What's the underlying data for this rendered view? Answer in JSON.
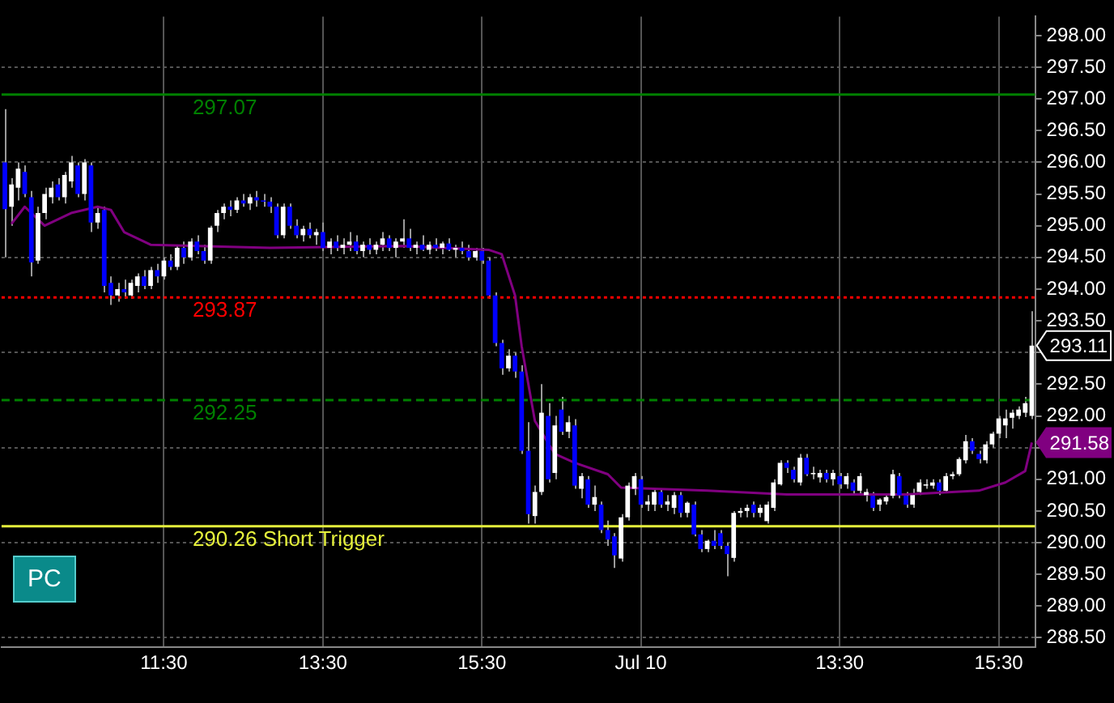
{
  "chart_data": {
    "type": "candlestick",
    "categories": [
      null,
      null,
      null,
      null,
      null,
      null,
      null,
      null,
      null,
      null,
      null,
      null,
      null,
      null,
      null,
      null,
      null,
      null,
      null,
      null,
      null,
      null,
      null,
      null,
      "11:30",
      null,
      null,
      null,
      null,
      null,
      null,
      null,
      null,
      null,
      null,
      null,
      null,
      null,
      null,
      null,
      null,
      null,
      null,
      null,
      null,
      null,
      null,
      null,
      "13:30",
      null,
      null,
      null,
      null,
      null,
      null,
      null,
      null,
      null,
      null,
      null,
      null,
      null,
      null,
      null,
      null,
      null,
      null,
      null,
      null,
      null,
      null,
      null,
      "15:30",
      null,
      null,
      null,
      null,
      null,
      null,
      null,
      null,
      null,
      null,
      null,
      null,
      null,
      null,
      null,
      null,
      null,
      null,
      null,
      null,
      null,
      null,
      null,
      "Jul 10",
      null,
      null,
      null,
      null,
      null,
      null,
      null,
      null,
      null,
      null,
      null,
      null,
      null,
      null,
      null,
      null,
      null,
      null,
      null,
      null,
      null,
      null,
      null,
      null,
      null,
      null,
      null,
      null,
      null,
      "13:30",
      null,
      null,
      null,
      null,
      null,
      null,
      null,
      null,
      null,
      null,
      null,
      null,
      null,
      null,
      null,
      null,
      null,
      null,
      null,
      null,
      null,
      null,
      null,
      "15:30",
      null,
      null,
      null,
      null,
      null
    ],
    "ohlc": [
      [
        296.0,
        296.84,
        294.5,
        295.26
      ],
      [
        295.3,
        295.75,
        295.0,
        295.65
      ],
      [
        295.6,
        296.0,
        295.4,
        295.9
      ],
      [
        295.85,
        295.95,
        295.45,
        295.5
      ],
      [
        295.45,
        295.55,
        294.2,
        294.42
      ],
      [
        294.45,
        295.3,
        294.4,
        295.2
      ],
      [
        295.2,
        295.6,
        295.1,
        295.5
      ],
      [
        295.45,
        295.7,
        295.35,
        295.6
      ],
      [
        295.65,
        295.75,
        295.4,
        295.45
      ],
      [
        295.45,
        295.85,
        295.35,
        295.8
      ],
      [
        295.7,
        296.1,
        295.6,
        296.0
      ],
      [
        295.95,
        296.0,
        295.45,
        295.5
      ],
      [
        295.5,
        296.05,
        295.4,
        296.0
      ],
      [
        295.95,
        296.0,
        294.9,
        295.05
      ],
      [
        295.05,
        295.3,
        294.95,
        295.2
      ],
      [
        295.25,
        295.3,
        293.95,
        294.05
      ],
      [
        294.1,
        294.2,
        293.75,
        293.9
      ],
      [
        293.9,
        294.1,
        293.8,
        294.0
      ],
      [
        294.0,
        294.15,
        293.85,
        293.95
      ],
      [
        293.9,
        294.15,
        293.85,
        294.1
      ],
      [
        294.05,
        294.25,
        293.95,
        294.2
      ],
      [
        294.2,
        294.3,
        294.0,
        294.05
      ],
      [
        294.05,
        294.35,
        294.0,
        294.3
      ],
      [
        294.3,
        294.4,
        294.1,
        294.2
      ],
      [
        294.2,
        294.5,
        294.15,
        294.45
      ],
      [
        294.45,
        294.55,
        294.3,
        294.35
      ],
      [
        294.35,
        294.7,
        294.3,
        294.65
      ],
      [
        294.65,
        294.75,
        294.4,
        294.5
      ],
      [
        294.5,
        294.8,
        294.45,
        294.75
      ],
      [
        294.75,
        294.85,
        294.55,
        294.6
      ],
      [
        294.6,
        294.7,
        294.4,
        294.45
      ],
      [
        294.45,
        295.0,
        294.4,
        294.97
      ],
      [
        295.0,
        295.25,
        294.9,
        295.2
      ],
      [
        295.2,
        295.35,
        295.1,
        295.3
      ],
      [
        295.3,
        295.4,
        295.15,
        295.25
      ],
      [
        295.25,
        295.45,
        295.2,
        295.4
      ],
      [
        295.4,
        295.5,
        295.3,
        295.35
      ],
      [
        295.35,
        295.5,
        295.25,
        295.45
      ],
      [
        295.45,
        295.55,
        295.3,
        295.4
      ],
      [
        295.4,
        295.5,
        295.3,
        295.38
      ],
      [
        295.38,
        295.45,
        295.2,
        295.3
      ],
      [
        295.3,
        295.35,
        294.8,
        294.85
      ],
      [
        294.85,
        295.35,
        294.8,
        295.3
      ],
      [
        295.3,
        295.35,
        294.95,
        295.0
      ],
      [
        295.0,
        295.1,
        294.8,
        294.85
      ],
      [
        294.85,
        295.0,
        294.75,
        294.95
      ],
      [
        294.95,
        295.05,
        294.8,
        294.85
      ],
      [
        294.85,
        294.95,
        294.7,
        294.9
      ],
      [
        294.9,
        295.05,
        294.6,
        294.65
      ],
      [
        294.65,
        294.8,
        294.55,
        294.75
      ],
      [
        294.75,
        294.85,
        294.6,
        294.65
      ],
      [
        294.65,
        294.8,
        294.55,
        294.7
      ],
      [
        294.7,
        294.9,
        294.6,
        294.75
      ],
      [
        294.75,
        294.85,
        294.55,
        294.6
      ],
      [
        294.6,
        294.75,
        294.5,
        294.7
      ],
      [
        294.7,
        294.8,
        294.55,
        294.62
      ],
      [
        294.62,
        294.75,
        294.55,
        294.7
      ],
      [
        294.7,
        294.9,
        294.6,
        294.8
      ],
      [
        294.8,
        294.85,
        294.6,
        294.65
      ],
      [
        294.65,
        294.8,
        294.5,
        294.75
      ],
      [
        294.75,
        295.1,
        294.65,
        294.8
      ],
      [
        294.8,
        294.95,
        294.6,
        294.65
      ],
      [
        294.65,
        294.75,
        294.55,
        294.7
      ],
      [
        294.7,
        294.85,
        294.6,
        294.62
      ],
      [
        294.62,
        294.75,
        294.55,
        294.7
      ],
      [
        294.7,
        294.8,
        294.6,
        294.65
      ],
      [
        294.65,
        294.75,
        294.55,
        294.72
      ],
      [
        294.72,
        294.8,
        294.6,
        294.62
      ],
      [
        294.62,
        294.7,
        294.5,
        294.65
      ],
      [
        294.65,
        294.75,
        294.55,
        294.6
      ],
      [
        294.6,
        294.7,
        294.45,
        294.5
      ],
      [
        294.5,
        294.65,
        294.45,
        294.6
      ],
      [
        294.6,
        294.65,
        294.4,
        294.45
      ],
      [
        294.45,
        294.5,
        293.85,
        293.9
      ],
      [
        293.9,
        293.95,
        293.1,
        293.15
      ],
      [
        293.15,
        293.2,
        292.65,
        292.75
      ],
      [
        292.75,
        293.05,
        292.7,
        292.95
      ],
      [
        292.95,
        293.0,
        292.6,
        292.7
      ],
      [
        292.7,
        292.8,
        291.4,
        291.45
      ],
      [
        291.45,
        291.9,
        290.3,
        290.45
      ],
      [
        290.42,
        290.9,
        290.3,
        290.8
      ],
      [
        290.8,
        292.5,
        290.75,
        292.05
      ],
      [
        292.0,
        292.2,
        290.95,
        291.0
      ],
      [
        291.1,
        292.0,
        291.0,
        291.85
      ],
      [
        292.1,
        292.3,
        291.7,
        291.75
      ],
      [
        291.75,
        292.0,
        291.65,
        291.9
      ],
      [
        291.85,
        291.95,
        290.85,
        290.9
      ],
      [
        290.85,
        291.1,
        290.7,
        291.05
      ],
      [
        291.0,
        291.05,
        290.55,
        290.6
      ],
      [
        290.6,
        290.9,
        290.5,
        290.72
      ],
      [
        290.6,
        290.65,
        290.15,
        290.2
      ],
      [
        290.2,
        290.35,
        289.95,
        290.05
      ],
      [
        290.1,
        290.15,
        289.6,
        289.8
      ],
      [
        289.75,
        290.45,
        289.7,
        290.4
      ],
      [
        290.4,
        290.95,
        290.35,
        290.9
      ],
      [
        290.85,
        291.1,
        290.75,
        291.05
      ],
      [
        291.0,
        291.05,
        290.55,
        290.6
      ],
      [
        290.6,
        290.75,
        290.5,
        290.65
      ],
      [
        290.6,
        290.85,
        290.5,
        290.8
      ],
      [
        290.8,
        290.85,
        290.55,
        290.6
      ],
      [
        290.6,
        290.75,
        290.5,
        290.65
      ],
      [
        290.55,
        290.8,
        290.45,
        290.75
      ],
      [
        290.75,
        290.8,
        290.4,
        290.47
      ],
      [
        290.47,
        290.65,
        290.4,
        290.63
      ],
      [
        290.6,
        290.65,
        290.1,
        290.13
      ],
      [
        290.13,
        290.2,
        289.85,
        289.9
      ],
      [
        289.9,
        290.05,
        289.85,
        290.03
      ],
      [
        290.03,
        290.2,
        289.9,
        289.95
      ],
      [
        290.15,
        290.2,
        289.9,
        289.95
      ],
      [
        289.95,
        290.0,
        289.47,
        289.82
      ],
      [
        289.76,
        290.5,
        289.7,
        290.47
      ],
      [
        290.47,
        290.55,
        290.4,
        290.5
      ],
      [
        290.5,
        290.6,
        290.4,
        290.55
      ],
      [
        290.6,
        290.65,
        290.4,
        290.47
      ],
      [
        290.47,
        290.6,
        290.4,
        290.55
      ],
      [
        290.34,
        290.65,
        290.3,
        290.6
      ],
      [
        290.55,
        291.0,
        290.5,
        290.95
      ],
      [
        290.92,
        291.3,
        290.9,
        291.26
      ],
      [
        291.26,
        291.3,
        291.1,
        291.18
      ],
      [
        291.15,
        291.2,
        290.95,
        291.0
      ],
      [
        290.95,
        291.4,
        290.9,
        291.34
      ],
      [
        291.34,
        291.4,
        291.05,
        291.08
      ],
      [
        291.08,
        291.2,
        291.0,
        291.1
      ],
      [
        291.03,
        291.15,
        290.95,
        291.1
      ],
      [
        291.1,
        291.15,
        290.95,
        291.0
      ],
      [
        291.0,
        291.15,
        290.9,
        291.1
      ],
      [
        291.05,
        291.1,
        290.85,
        290.92
      ],
      [
        290.92,
        291.1,
        290.85,
        291.05
      ],
      [
        290.95,
        291.0,
        290.75,
        290.82
      ],
      [
        290.82,
        291.1,
        290.75,
        291.05
      ],
      [
        290.75,
        290.85,
        290.65,
        290.8
      ],
      [
        290.74,
        290.8,
        290.5,
        290.55
      ],
      [
        290.6,
        290.7,
        290.5,
        290.68
      ],
      [
        290.65,
        290.75,
        290.6,
        290.72
      ],
      [
        290.74,
        291.15,
        290.7,
        291.08
      ],
      [
        291.05,
        291.1,
        290.7,
        290.75
      ],
      [
        290.74,
        290.8,
        290.55,
        290.6
      ],
      [
        290.6,
        290.85,
        290.55,
        290.75
      ],
      [
        290.8,
        291.0,
        290.75,
        290.95
      ],
      [
        290.9,
        291.0,
        290.85,
        290.92
      ],
      [
        290.9,
        291.0,
        290.85,
        290.95
      ],
      [
        290.95,
        291.0,
        290.75,
        290.82
      ],
      [
        290.82,
        291.1,
        290.8,
        291.05
      ],
      [
        291.05,
        291.12,
        291.0,
        291.08
      ],
      [
        291.08,
        291.35,
        291.05,
        291.32
      ],
      [
        291.3,
        291.7,
        291.25,
        291.6
      ],
      [
        291.6,
        291.65,
        291.4,
        291.45
      ],
      [
        291.4,
        291.45,
        291.25,
        291.32
      ],
      [
        291.3,
        291.6,
        291.25,
        291.55
      ],
      [
        291.55,
        291.75,
        291.5,
        291.72
      ],
      [
        291.72,
        292.0,
        291.65,
        291.96
      ],
      [
        291.85,
        292.1,
        291.65,
        291.96
      ],
      [
        291.97,
        292.1,
        291.8,
        292.05
      ],
      [
        292.0,
        292.15,
        291.95,
        292.1
      ],
      [
        292.05,
        292.3,
        291.98,
        292.2
      ],
      [
        292.0,
        293.65,
        291.95,
        293.11
      ]
    ],
    "series": [
      {
        "type": "line",
        "color": "#800080",
        "values": [
          null,
          295.03,
          null,
          295.3,
          null,
          null,
          295.0,
          null,
          null,
          null,
          295.2,
          null,
          null,
          null,
          295.3,
          null,
          295.25,
          null,
          294.9,
          null,
          null,
          null,
          294.7,
          null,
          null,
          null,
          null,
          null,
          null,
          null,
          null,
          null,
          null,
          null,
          null,
          null,
          null,
          null,
          null,
          null,
          294.65,
          null,
          null,
          null,
          null,
          null,
          null,
          null,
          null,
          null,
          null,
          null,
          null,
          null,
          null,
          null,
          null,
          null,
          null,
          null,
          294.68,
          null,
          null,
          null,
          null,
          null,
          null,
          null,
          null,
          null,
          null,
          null,
          null,
          294.62,
          null,
          294.55,
          null,
          293.9,
          293.1,
          null,
          291.92,
          null,
          null,
          291.4,
          null,
          null,
          291.26,
          null,
          null,
          null,
          null,
          291.08,
          null,
          290.87,
          null,
          null,
          null,
          null,
          290.85,
          null,
          null,
          null,
          null,
          null,
          null,
          null,
          290.82,
          null,
          null,
          null,
          null,
          null,
          null,
          null,
          null,
          null,
          null,
          null,
          290.76,
          null,
          null,
          null,
          null,
          null,
          null,
          null,
          null,
          null,
          null,
          null,
          null,
          null,
          null,
          null,
          null,
          null,
          290.76,
          null,
          null,
          null,
          null,
          null,
          null,
          null,
          null,
          null,
          null,
          290.82,
          null,
          null,
          null,
          290.95,
          null,
          null,
          291.13,
          291.58
        ]
      }
    ],
    "ylim": [
      288.35,
      298.3
    ],
    "yticks": [
      {
        "value": 288.5,
        "label": "288.50"
      },
      {
        "value": 289,
        "label": "289.00"
      },
      {
        "value": 289.5,
        "label": "289.50"
      },
      {
        "value": 290,
        "label": "290.00"
      },
      {
        "value": 290.5,
        "label": "290.50"
      },
      {
        "value": 291,
        "label": "291.00"
      },
      {
        "value": 291.5,
        "label": null
      },
      {
        "value": 292,
        "label": "292.00"
      },
      {
        "value": 292.5,
        "label": "292.50"
      },
      {
        "value": 293,
        "label": null
      },
      {
        "value": 293.5,
        "label": "293.50"
      },
      {
        "value": 294,
        "label": "294.00"
      },
      {
        "value": 294.5,
        "label": "294.50"
      },
      {
        "value": 295,
        "label": "295.00"
      },
      {
        "value": 295.5,
        "label": "295.50"
      },
      {
        "value": 296,
        "label": "296.00"
      },
      {
        "value": 296.5,
        "label": "296.50"
      },
      {
        "value": 297,
        "label": "297.00"
      },
      {
        "value": 297.5,
        "label": "297.50"
      },
      {
        "value": 298,
        "label": "298.00"
      }
    ],
    "ref_lines": [
      {
        "axis": "y",
        "value": 297.07,
        "label": "297.07",
        "color": "#008000",
        "line_style": "solid"
      },
      {
        "axis": "y",
        "value": 293.87,
        "label": "293.87",
        "color": "#ff0000",
        "line_style": "dotted"
      },
      {
        "axis": "y",
        "value": 292.25,
        "label": "292.25",
        "color": "#008000",
        "line_style": "dashed"
      },
      {
        "axis": "y",
        "value": 290.26,
        "label": "290.26 Short Trigger",
        "color": "#e5f03c",
        "line_style": "solid"
      }
    ],
    "annotations": [
      "PC",
      "293.11",
      "291.58"
    ],
    "grid": true,
    "legend": false
  }
}
